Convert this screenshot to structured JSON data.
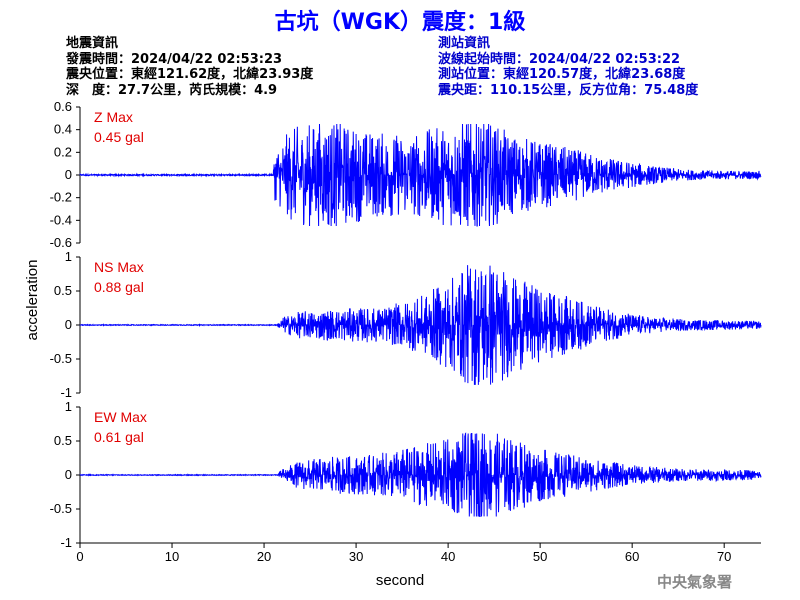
{
  "title": "古坑（WGK）震度：1級",
  "info_left": [
    "地震資訊",
    "發震時間：2024/04/22 02:53:23",
    "震央位置：東經121.62度，北緯23.93度",
    "深　度：27.7公里，芮氏規模：4.9"
  ],
  "info_right": [
    "測站資訊",
    "波線起始時間：2024/04/22 02:53:22",
    "測站位置：東經120.57度，北緯23.68度",
    "震央距：110.15公里，反方位角：75.48度"
  ],
  "footer": "中央氣象署",
  "chart_data": {
    "type": "line",
    "xlabel": "second",
    "ylabel": "acceleration",
    "xlim": [
      0,
      74
    ],
    "xticks": [
      "0",
      "10",
      "20",
      "30",
      "40",
      "50",
      "60",
      "70"
    ],
    "line_color": "#0000ff",
    "panels": [
      {
        "name": "Z Max",
        "max_label": "0.45 gal",
        "ylim": [
          -0.6,
          0.6
        ],
        "yticks": [
          "0.6",
          "0.4",
          "0.2",
          "0",
          "-0.2",
          "-0.4",
          "-0.6"
        ],
        "onset": 21.0,
        "peak": 0.45,
        "noise": 0.01,
        "envelope": [
          [
            0,
            0.01
          ],
          [
            20.9,
            0.01
          ],
          [
            21.2,
            0.2
          ],
          [
            23,
            0.35
          ],
          [
            27,
            0.42
          ],
          [
            31,
            0.33
          ],
          [
            36,
            0.3
          ],
          [
            40,
            0.38
          ],
          [
            43,
            0.45
          ],
          [
            47,
            0.3
          ],
          [
            52,
            0.22
          ],
          [
            58,
            0.12
          ],
          [
            63,
            0.06
          ],
          [
            67,
            0.035
          ],
          [
            74,
            0.03
          ]
        ]
      },
      {
        "name": "NS Max",
        "max_label": "0.88 gal",
        "ylim": [
          -1,
          1
        ],
        "yticks": [
          "1",
          "0.5",
          "0",
          "-0.5",
          "-1"
        ],
        "onset": 21.5,
        "peak": 0.88,
        "noise": 0.01,
        "envelope": [
          [
            0,
            0.01
          ],
          [
            21.4,
            0.01
          ],
          [
            22,
            0.1
          ],
          [
            24,
            0.17
          ],
          [
            28,
            0.2
          ],
          [
            33,
            0.22
          ],
          [
            37,
            0.35
          ],
          [
            40,
            0.55
          ],
          [
            42,
            0.75
          ],
          [
            44,
            0.88
          ],
          [
            47,
            0.6
          ],
          [
            50,
            0.45
          ],
          [
            54,
            0.32
          ],
          [
            57,
            0.2
          ],
          [
            62,
            0.1
          ],
          [
            66,
            0.07
          ],
          [
            74,
            0.05
          ]
        ]
      },
      {
        "name": "EW Max",
        "max_label": "0.61 gal",
        "ylim": [
          -1,
          1
        ],
        "yticks": [
          "1",
          "0.5",
          "0",
          "-0.5",
          "-1"
        ],
        "onset": 21.5,
        "peak": 0.61,
        "noise": 0.01,
        "envelope": [
          [
            0,
            0.01
          ],
          [
            21.4,
            0.01
          ],
          [
            22,
            0.08
          ],
          [
            24,
            0.18
          ],
          [
            28,
            0.23
          ],
          [
            32,
            0.25
          ],
          [
            36,
            0.35
          ],
          [
            40,
            0.45
          ],
          [
            43,
            0.61
          ],
          [
            47,
            0.45
          ],
          [
            51,
            0.3
          ],
          [
            56,
            0.2
          ],
          [
            60,
            0.12
          ],
          [
            65,
            0.08
          ],
          [
            74,
            0.06
          ]
        ]
      }
    ]
  }
}
